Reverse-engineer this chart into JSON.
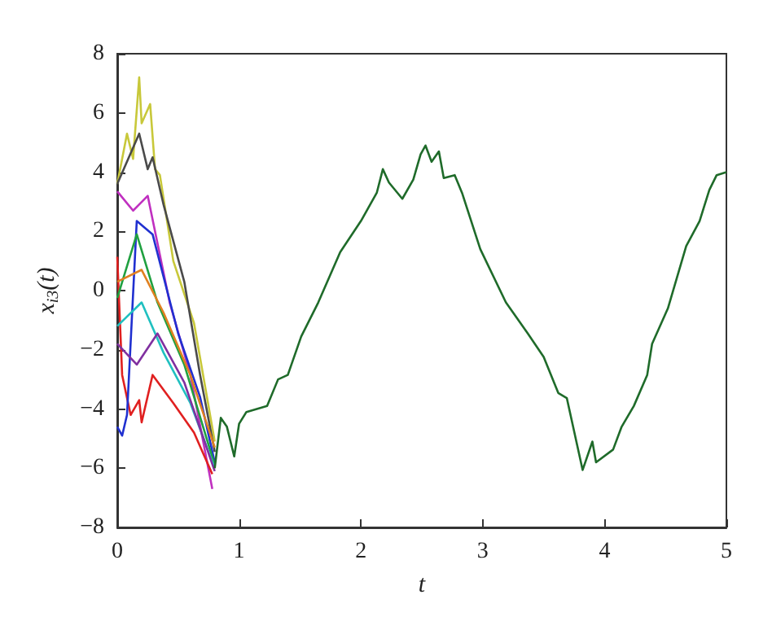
{
  "chart_data": {
    "type": "line",
    "xlabel": "t",
    "ylabel": "x$_{i3}$(t)",
    "xlim": [
      0,
      5
    ],
    "xticks": [
      0,
      1,
      2,
      3,
      4,
      5
    ],
    "ylim": [
      -8,
      8
    ],
    "yticks": [
      -8,
      -6,
      -4,
      -2,
      0,
      2,
      4,
      6,
      8
    ],
    "marker": "none",
    "series": [
      {
        "color": "#c8c83a",
        "x": [
          0,
          0.08,
          0.13,
          0.18,
          0.2,
          0.27,
          0.31,
          0.35,
          0.46,
          0.63,
          0.8
        ],
        "values": [
          3.6,
          5.3,
          4.45,
          7.2,
          5.65,
          6.3,
          4.1,
          3.9,
          1.0,
          -1.1,
          -5.1
        ]
      },
      {
        "color": "#4a4a4a",
        "x": [
          0,
          0.18,
          0.25,
          0.29,
          0.38,
          0.55,
          0.68,
          0.8
        ],
        "values": [
          3.6,
          5.3,
          4.1,
          4.5,
          2.9,
          0.3,
          -2.85,
          -5.45
        ]
      },
      {
        "color": "#c030c0",
        "x": [
          0,
          0.13,
          0.25,
          0.43,
          0.6,
          0.78
        ],
        "values": [
          3.35,
          2.7,
          3.2,
          -0.4,
          -2.85,
          -6.7
        ]
      },
      {
        "color": "#e02020",
        "x": [
          0,
          0.04,
          0.11,
          0.18,
          0.2,
          0.29,
          0.46,
          0.63,
          0.78
        ],
        "values": [
          1.14,
          -2.85,
          -4.2,
          -3.7,
          -4.45,
          -2.85,
          -3.8,
          -4.8,
          -6.2
        ]
      },
      {
        "color": "#2030d0",
        "x": [
          0,
          0.04,
          0.08,
          0.16,
          0.29,
          0.5,
          0.68,
          0.8
        ],
        "values": [
          -4.6,
          -4.9,
          -4.2,
          2.35,
          1.9,
          -1.45,
          -3.6,
          -5.8
        ]
      },
      {
        "color": "#20a040",
        "x": [
          0,
          0.16,
          0.33,
          0.55,
          0.8
        ],
        "values": [
          -0.25,
          1.9,
          -0.4,
          -2.5,
          -5.9
        ]
      },
      {
        "color": "#20c0c0",
        "x": [
          0,
          0.2,
          0.38,
          0.6,
          0.8
        ],
        "values": [
          -1.2,
          -0.4,
          -2.1,
          -3.8,
          -6.0
        ]
      },
      {
        "color": "#8030a0",
        "x": [
          0,
          0.16,
          0.33,
          0.55,
          0.8
        ],
        "values": [
          -1.8,
          -2.5,
          -1.45,
          -3.1,
          -6.1
        ]
      },
      {
        "color": "#e08020",
        "x": [
          0,
          0.2,
          0.38,
          0.6,
          0.8
        ],
        "values": [
          0.3,
          0.7,
          -0.75,
          -2.85,
          -5.3
        ]
      },
      {
        "color": "#1f6b2a",
        "x": [
          0.8,
          0.85,
          0.9,
          0.96,
          1.0,
          1.06,
          1.23,
          1.32,
          1.4,
          1.51,
          1.65,
          1.83,
          2.0,
          2.13,
          2.18,
          2.23,
          2.34,
          2.43,
          2.49,
          2.53,
          2.58,
          2.64,
          2.68,
          2.77,
          2.83,
          2.98,
          3.19,
          3.37,
          3.5,
          3.62,
          3.69,
          3.82,
          3.9,
          3.93,
          4.07,
          4.14,
          4.24,
          4.35,
          4.39,
          4.52,
          4.67,
          4.78,
          4.86,
          4.92,
          5.0
        ],
        "values": [
          -6.0,
          -4.3,
          -4.6,
          -5.6,
          -4.5,
          -4.1,
          -3.9,
          -3.0,
          -2.85,
          -1.55,
          -0.4,
          1.3,
          2.35,
          3.3,
          4.1,
          3.65,
          3.1,
          3.75,
          4.6,
          4.9,
          4.35,
          4.7,
          3.8,
          3.9,
          3.3,
          1.4,
          -0.4,
          -1.45,
          -2.24,
          -3.46,
          -3.63,
          -6.06,
          -5.1,
          -5.8,
          -5.37,
          -4.6,
          -3.9,
          -2.85,
          -1.8,
          -0.6,
          1.5,
          2.35,
          3.4,
          3.9,
          4.0
        ]
      }
    ]
  }
}
